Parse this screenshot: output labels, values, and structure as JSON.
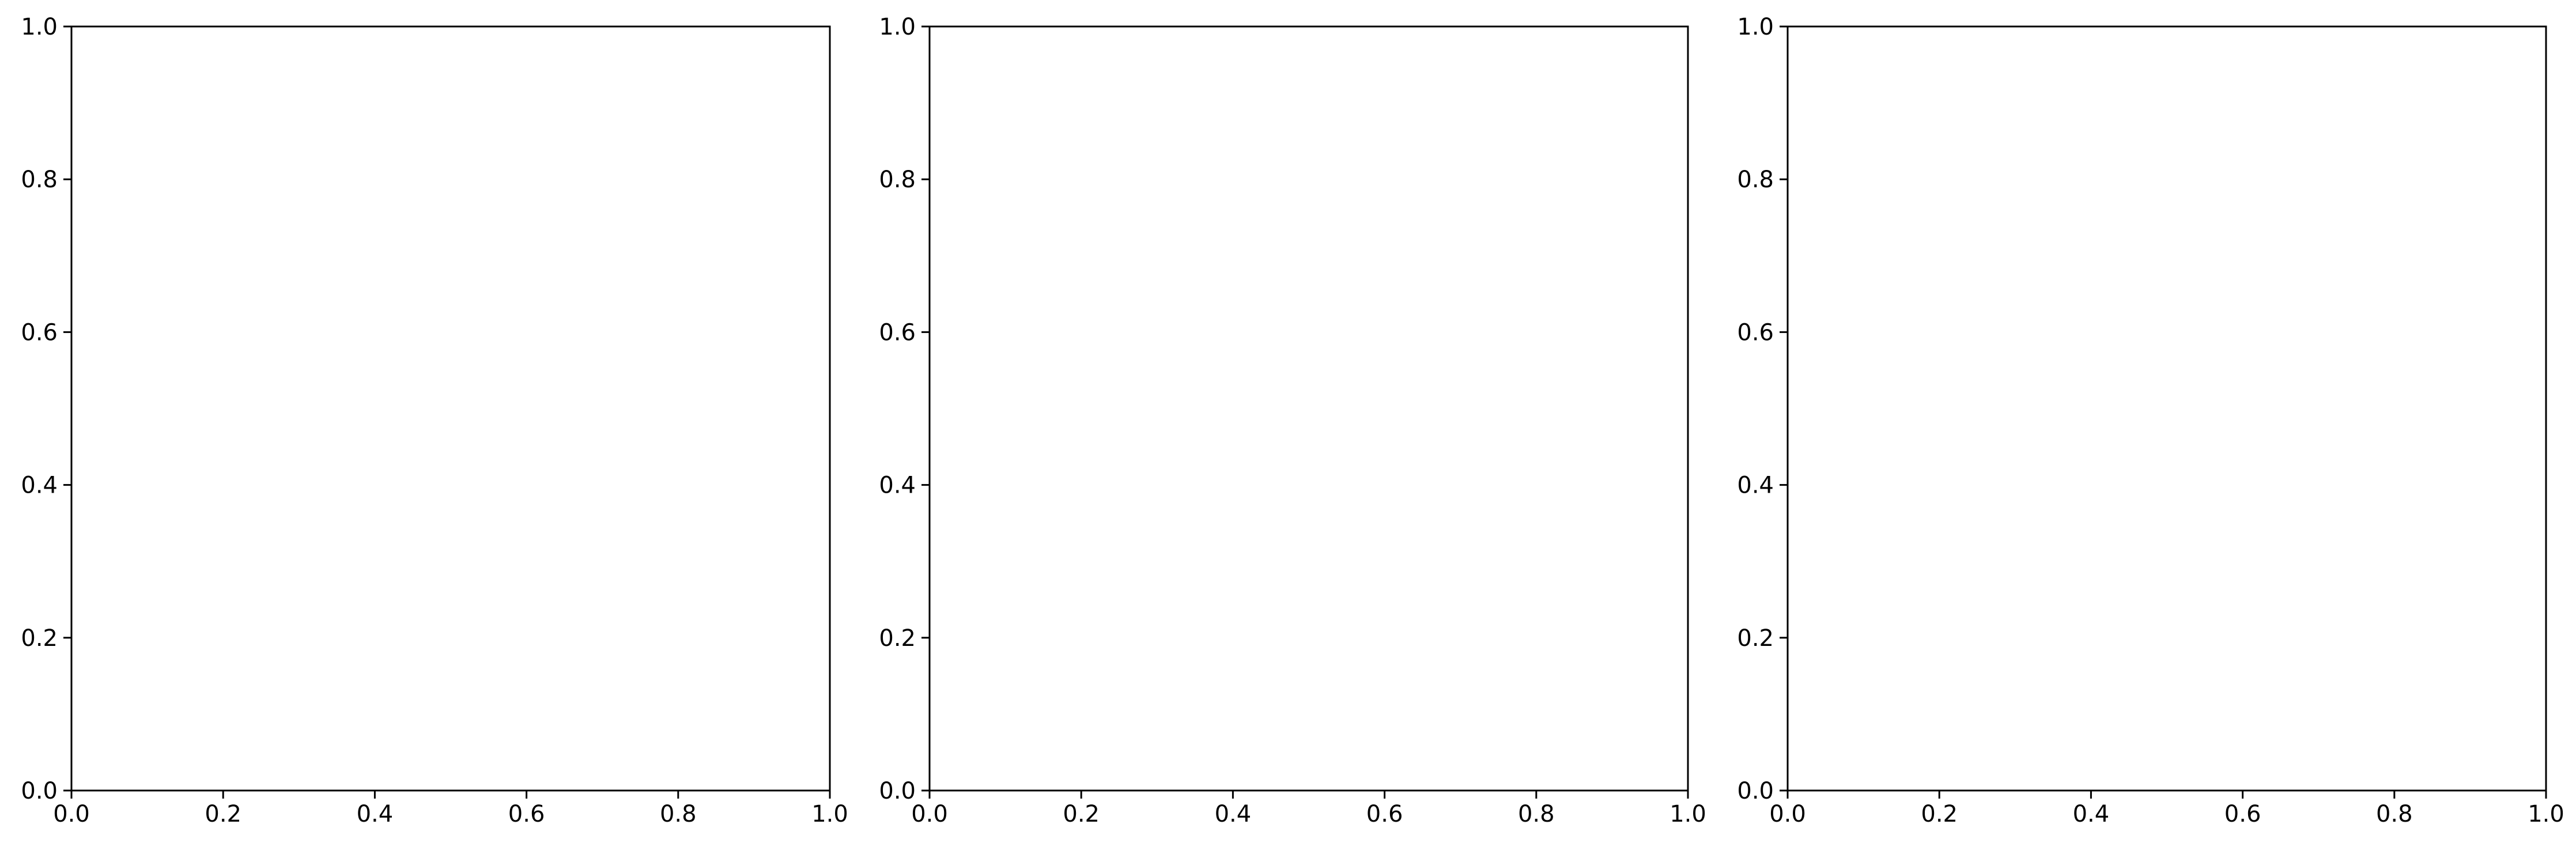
{
  "chart_data": [
    {
      "type": "scatter",
      "title": "",
      "xlabel": "",
      "ylabel": "",
      "series": [],
      "xlim": [
        0.0,
        1.0
      ],
      "ylim": [
        0.0,
        1.0
      ],
      "xticks": [
        "0.0",
        "0.2",
        "0.4",
        "0.6",
        "0.8",
        "1.0"
      ],
      "yticks": [
        "0.0",
        "0.2",
        "0.4",
        "0.6",
        "0.8",
        "1.0"
      ],
      "grid": false,
      "legend": null
    },
    {
      "type": "scatter",
      "title": "",
      "xlabel": "",
      "ylabel": "",
      "series": [],
      "xlim": [
        0.0,
        1.0
      ],
      "ylim": [
        0.0,
        1.0
      ],
      "xticks": [
        "0.0",
        "0.2",
        "0.4",
        "0.6",
        "0.8",
        "1.0"
      ],
      "yticks": [
        "0.0",
        "0.2",
        "0.4",
        "0.6",
        "0.8",
        "1.0"
      ],
      "grid": false,
      "legend": null
    },
    {
      "type": "scatter",
      "title": "",
      "xlabel": "",
      "ylabel": "",
      "series": [],
      "xlim": [
        0.0,
        1.0
      ],
      "ylim": [
        0.0,
        1.0
      ],
      "xticks": [
        "0.0",
        "0.2",
        "0.4",
        "0.6",
        "0.8",
        "1.0"
      ],
      "yticks": [
        "0.0",
        "0.2",
        "0.4",
        "0.6",
        "0.8",
        "1.0"
      ],
      "grid": false,
      "legend": null
    }
  ],
  "colors": {
    "background": "#ffffff",
    "axis": "#000000",
    "text": "#000000"
  }
}
